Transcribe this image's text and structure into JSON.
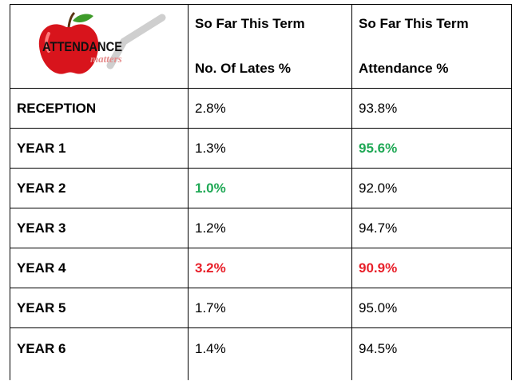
{
  "logo": {
    "line1": "ATTENDANCE",
    "line2": "matters"
  },
  "header": {
    "lates": [
      "So Far This Term",
      "No. Of Lates %"
    ],
    "attendance": [
      "So Far This Term",
      "Attendance %"
    ]
  },
  "rows": [
    {
      "label": "RECEPTION",
      "lates": "2.8%",
      "attendance": "93.8%"
    },
    {
      "label": "YEAR 1",
      "lates": "1.3%",
      "attendance": {
        "text": "95.6%",
        "color": "#1fa855"
      }
    },
    {
      "label": "YEAR 2",
      "lates": {
        "text": "1.0%",
        "color": "#1fa855"
      },
      "attendance": "92.0%"
    },
    {
      "label": "YEAR 3",
      "lates": "1.2%",
      "attendance": "94.7%"
    },
    {
      "label": "YEAR 4",
      "lates": {
        "text": "3.2%",
        "color": "#e8202a"
      },
      "attendance": {
        "text": "90.9%",
        "color": "#e8202a"
      }
    },
    {
      "label": "YEAR 5",
      "lates": "1.7%",
      "attendance": "95.0%"
    },
    {
      "label": "YEAR 6",
      "lates": "1.4%",
      "attendance": "94.5%"
    }
  ]
}
